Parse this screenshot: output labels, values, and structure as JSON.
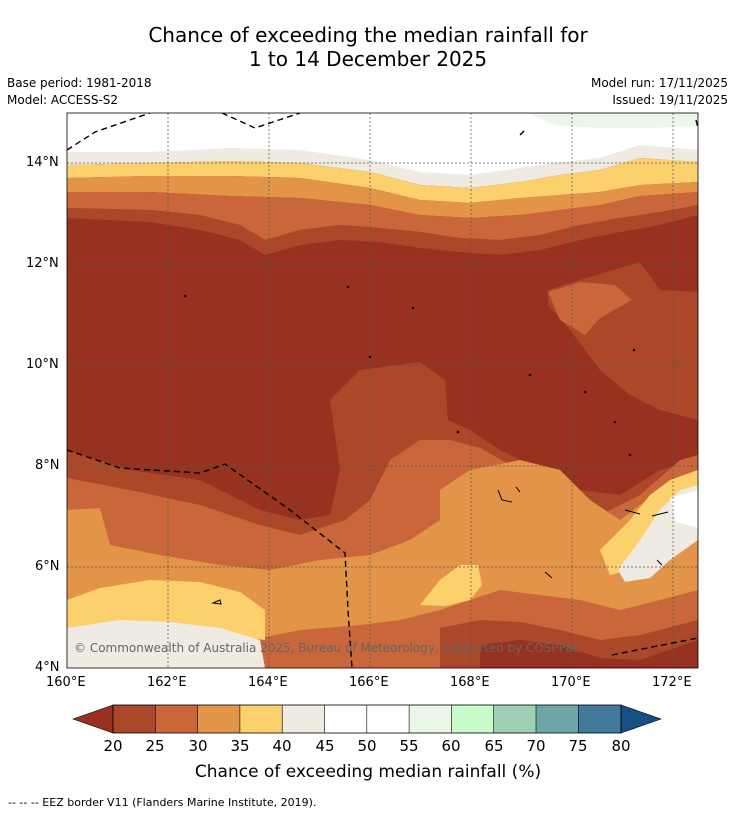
{
  "title": {
    "line1": "Chance of exceeding the median rainfall for",
    "line2": "1 to 14 December 2025"
  },
  "meta": {
    "base_period": "Base period: 1981-2018",
    "model": "Model: ACCESS-S2",
    "model_run": "Model run: 17/11/2025",
    "issued": "Issued: 19/11/2025"
  },
  "map": {
    "copyright": "© Commonwealth of Australia 2025, Bureau of Meteorology, supported by COSPPac",
    "lat_labels": [
      "14°N",
      "12°N",
      "10°N",
      "8°N",
      "6°N",
      "4°N"
    ],
    "lon_labels": [
      "160°E",
      "162°E",
      "164°E",
      "166°E",
      "168°E",
      "170°E",
      "172°E"
    ]
  },
  "colorbar": {
    "title": "Chance of exceeding median rainfall (%)",
    "ticks": [
      "20",
      "25",
      "30",
      "35",
      "40",
      "45",
      "50",
      "55",
      "60",
      "65",
      "70",
      "75",
      "80"
    ],
    "colors": {
      "below20": "#96321f",
      "c20_25": "#ab4829",
      "c25_30": "#c9673a",
      "c30_35": "#e29548",
      "c35_40": "#fcd06d",
      "c40_45": "#efeae2",
      "c45_50": "#ffffff",
      "c50_55": "#ffffff",
      "c55_60": "#eaf6e8",
      "c60_65": "#c8fcca",
      "c65_70": "#9dd0b4",
      "c70_75": "#6ea5a8",
      "c75_80": "#437a9b",
      "above80": "#174f85"
    }
  },
  "footer": "--  --  -- EEZ border V11 (Flanders Marine Institute, 2019)."
}
